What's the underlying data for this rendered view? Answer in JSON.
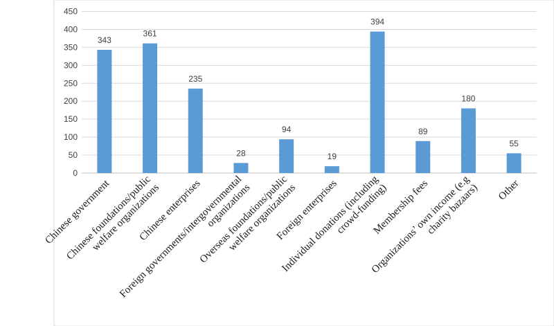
{
  "chart_data": {
    "type": "bar",
    "title": "",
    "xlabel": "",
    "ylabel": "",
    "ylim": [
      0,
      450
    ],
    "yticks": [
      0,
      50,
      100,
      150,
      200,
      250,
      300,
      350,
      400,
      450
    ],
    "grid": true,
    "legend": "none",
    "bar_color": "#5b9bd5",
    "categories": [
      [
        "Chinese government"
      ],
      [
        "Chinese foundations/public",
        "welfare organizations"
      ],
      [
        "Chinese enterprises"
      ],
      [
        "Foreign governments/intergovernmental",
        "organizations"
      ],
      [
        "Overseas foundations/public",
        "welfare organizations"
      ],
      [
        "Foreign enterprises"
      ],
      [
        "Individual donations (including",
        "crowd-funding)"
      ],
      [
        "Membership fees"
      ],
      [
        "Organizations’ own income (e.g",
        "charity bazaars)"
      ],
      [
        "Other"
      ]
    ],
    "values": [
      343,
      361,
      235,
      28,
      94,
      19,
      394,
      89,
      180,
      55
    ],
    "data_labels": [
      "343",
      "361",
      "235",
      "28",
      "94",
      "19",
      "394",
      "89",
      "180",
      "55"
    ]
  }
}
